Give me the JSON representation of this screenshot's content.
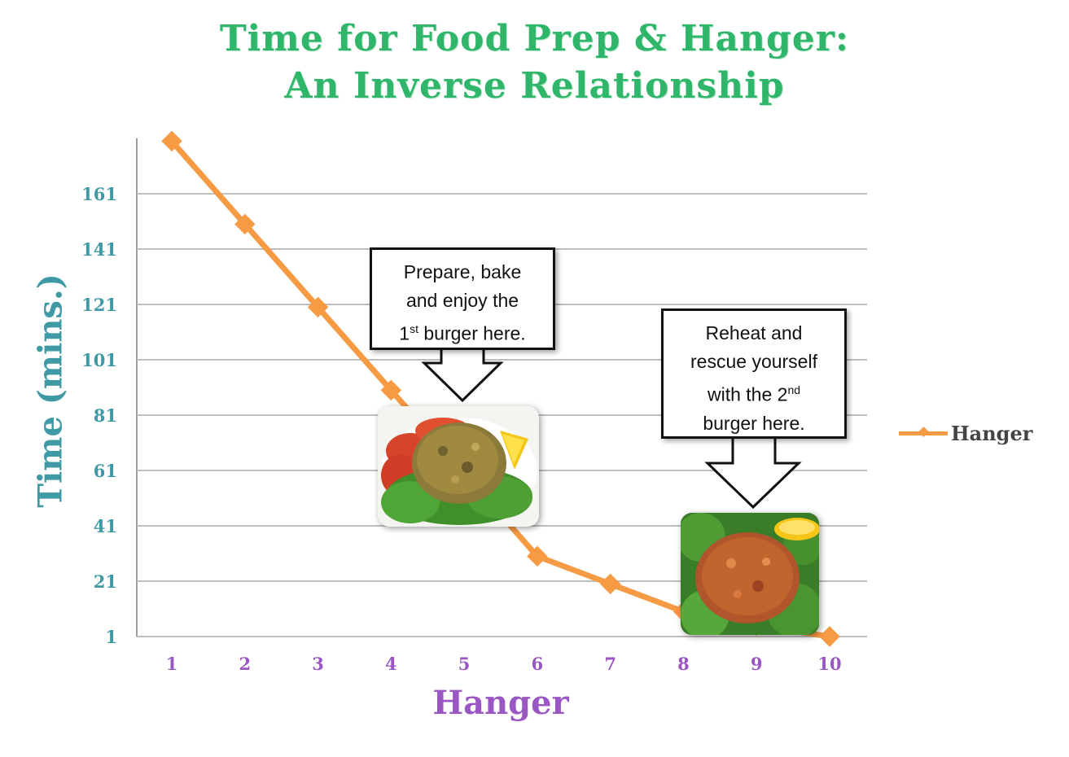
{
  "title_line1": "Time for Food Prep & Hanger:",
  "title_line2": "An Inverse Relationship",
  "callout1": {
    "l1": "Prepare, bake",
    "l2": "and enjoy the",
    "l3_pre": "1",
    "l3_sup": "st",
    "l3_post": " burger here."
  },
  "callout2": {
    "l1": "Reheat and",
    "l2": "rescue yourself",
    "l3_pre": "with the 2",
    "l3_sup": "nd",
    "l4": "burger here."
  },
  "colors": {
    "line": "#f79a44",
    "title": "#2fb66a",
    "ytext": "#3f9aa5",
    "xtext": "#9a56c2",
    "grid": "#bdbdbd"
  },
  "icons": {
    "photo1": "stuffed-burger-with-tomato-lemon-kale-photo",
    "photo2": "browned-burger-on-kale-with-lemon-photo"
  },
  "chart_data": {
    "type": "line",
    "title": "Time for Food Prep & Hanger: An Inverse Relationship",
    "xlabel": "Hanger",
    "ylabel": "Time (mins.)",
    "x": [
      1,
      2,
      3,
      4,
      5,
      6,
      7,
      8,
      9,
      10
    ],
    "xticks": [
      "1",
      "2",
      "3",
      "4",
      "5",
      "6",
      "7",
      "8",
      "9",
      "10"
    ],
    "yticks": [
      "1",
      "21",
      "41",
      "61",
      "81",
      "101",
      "121",
      "141",
      "161"
    ],
    "ylim": [
      1,
      181
    ],
    "series": [
      {
        "name": "Hanger",
        "values": [
          180,
          150,
          120,
          90,
          60,
          30,
          20,
          10,
          5,
          1
        ]
      }
    ],
    "grid": true,
    "legend": "right"
  }
}
